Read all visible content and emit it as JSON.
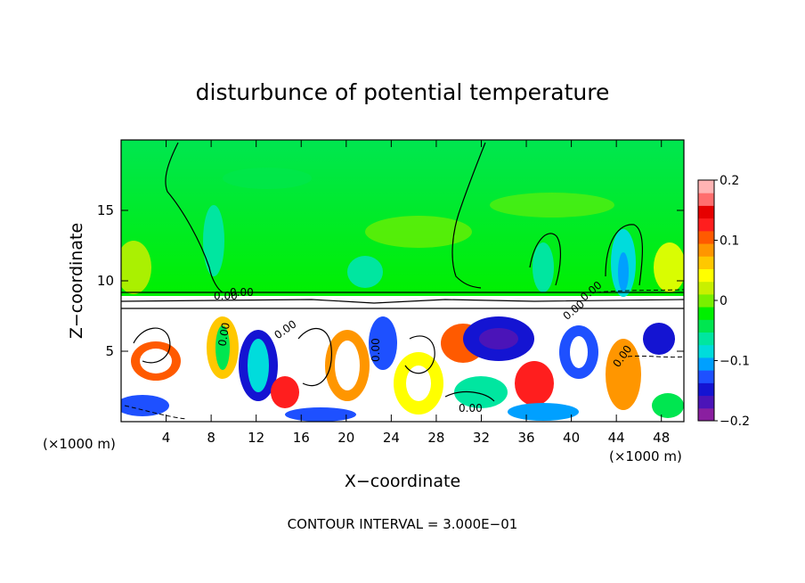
{
  "chart_data": {
    "type": "heatmap",
    "title": "disturbunce of potential temperature",
    "xlabel": "X−coordinate",
    "ylabel": "Z−coordinate",
    "x_unit": "(×1000 m)",
    "x_unit_right": "(×1000 m)",
    "xlim": [
      0,
      50
    ],
    "ylim": [
      0,
      20
    ],
    "x_ticks": [
      4,
      8,
      12,
      16,
      20,
      24,
      28,
      32,
      36,
      40,
      44,
      48
    ],
    "y_ticks": [
      5,
      10,
      15
    ],
    "colorbar": {
      "range": [
        -0.2,
        0.2
      ],
      "tick_labels": [
        "0.2",
        "0.1",
        "0",
        "−0.1",
        "−0.2"
      ],
      "tick_values": [
        0.2,
        0.1,
        0,
        -0.1,
        -0.2
      ],
      "colors": [
        "#8a1fa0",
        "#4b14b8",
        "#1414d2",
        "#1e50ff",
        "#00a0ff",
        "#00dcdc",
        "#00e6a0",
        "#00e650",
        "#00f000",
        "#78f000",
        "#c8f000",
        "#ffff00",
        "#ffc800",
        "#ff9600",
        "#ff5a00",
        "#ff1e1e",
        "#e60000",
        "#ff6e6e",
        "#ffb4b4"
      ]
    },
    "contour_labels": [
      "0.00",
      "0.00",
      "0.00",
      "0.00",
      "0.00",
      "0.00",
      "0.00",
      "0.00",
      "0.00"
    ],
    "footer": "CONTOUR INTERVAL = 3.000E−01"
  }
}
